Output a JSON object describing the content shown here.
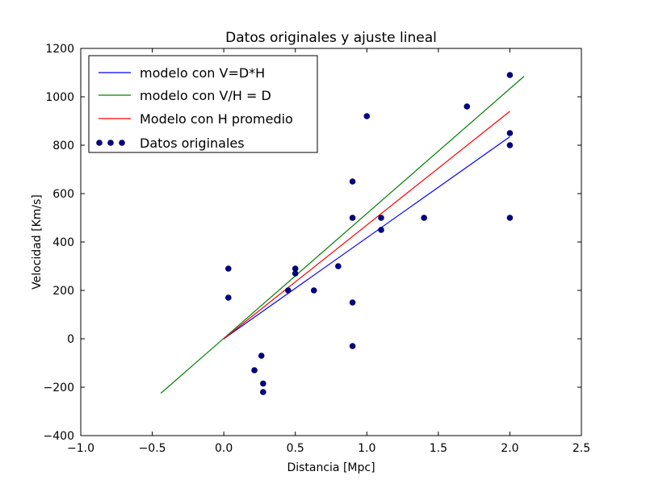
{
  "chart_data": {
    "type": "scatter",
    "title": "Datos originales y ajuste lineal",
    "xlabel": "Distancia [Mpc]",
    "ylabel": "Velocidad [Km/s]",
    "xlim": [
      -1.0,
      2.5
    ],
    "ylim": [
      -400,
      1200
    ],
    "xticks": [
      -1.0,
      -0.5,
      0.0,
      0.5,
      1.0,
      1.5,
      2.0,
      2.5
    ],
    "xtick_labels": [
      "−1.0",
      "−0.5",
      "0.0",
      "0.5",
      "1.0",
      "1.5",
      "2.0",
      "2.5"
    ],
    "yticks": [
      -400,
      -200,
      0,
      200,
      400,
      600,
      800,
      1000,
      1200
    ],
    "ytick_labels": [
      "−400",
      "−200",
      "0",
      "200",
      "400",
      "600",
      "800",
      "1000",
      "1200"
    ],
    "grid": false,
    "legend_position": "top-left",
    "lines": [
      {
        "name": "modelo con V=D*H",
        "color": "#0000ff",
        "x": [
          0.0,
          2.0
        ],
        "y": [
          0,
          835
        ]
      },
      {
        "name": "modelo con V/H = D",
        "color": "#008000",
        "x": [
          -0.44,
          2.1
        ],
        "y": [
          -225,
          1085
        ]
      },
      {
        "name": "Modelo con H promedio",
        "color": "#ff0000",
        "x": [
          0.0,
          2.0
        ],
        "y": [
          0,
          940
        ]
      }
    ],
    "scatter": {
      "name": "Datos originales",
      "color": "#00008b",
      "points": [
        [
          0.032,
          170
        ],
        [
          0.032,
          290
        ],
        [
          0.214,
          -130
        ],
        [
          0.263,
          -70
        ],
        [
          0.275,
          -185
        ],
        [
          0.275,
          -220
        ],
        [
          0.45,
          200
        ],
        [
          0.5,
          290
        ],
        [
          0.5,
          270
        ],
        [
          0.63,
          200
        ],
        [
          0.8,
          300
        ],
        [
          0.9,
          -30
        ],
        [
          0.9,
          650
        ],
        [
          0.9,
          150
        ],
        [
          0.9,
          500
        ],
        [
          1.0,
          920
        ],
        [
          1.1,
          450
        ],
        [
          1.1,
          500
        ],
        [
          1.4,
          500
        ],
        [
          1.7,
          960
        ],
        [
          2.0,
          500
        ],
        [
          2.0,
          850
        ],
        [
          2.0,
          800
        ],
        [
          2.0,
          1090
        ]
      ]
    }
  }
}
